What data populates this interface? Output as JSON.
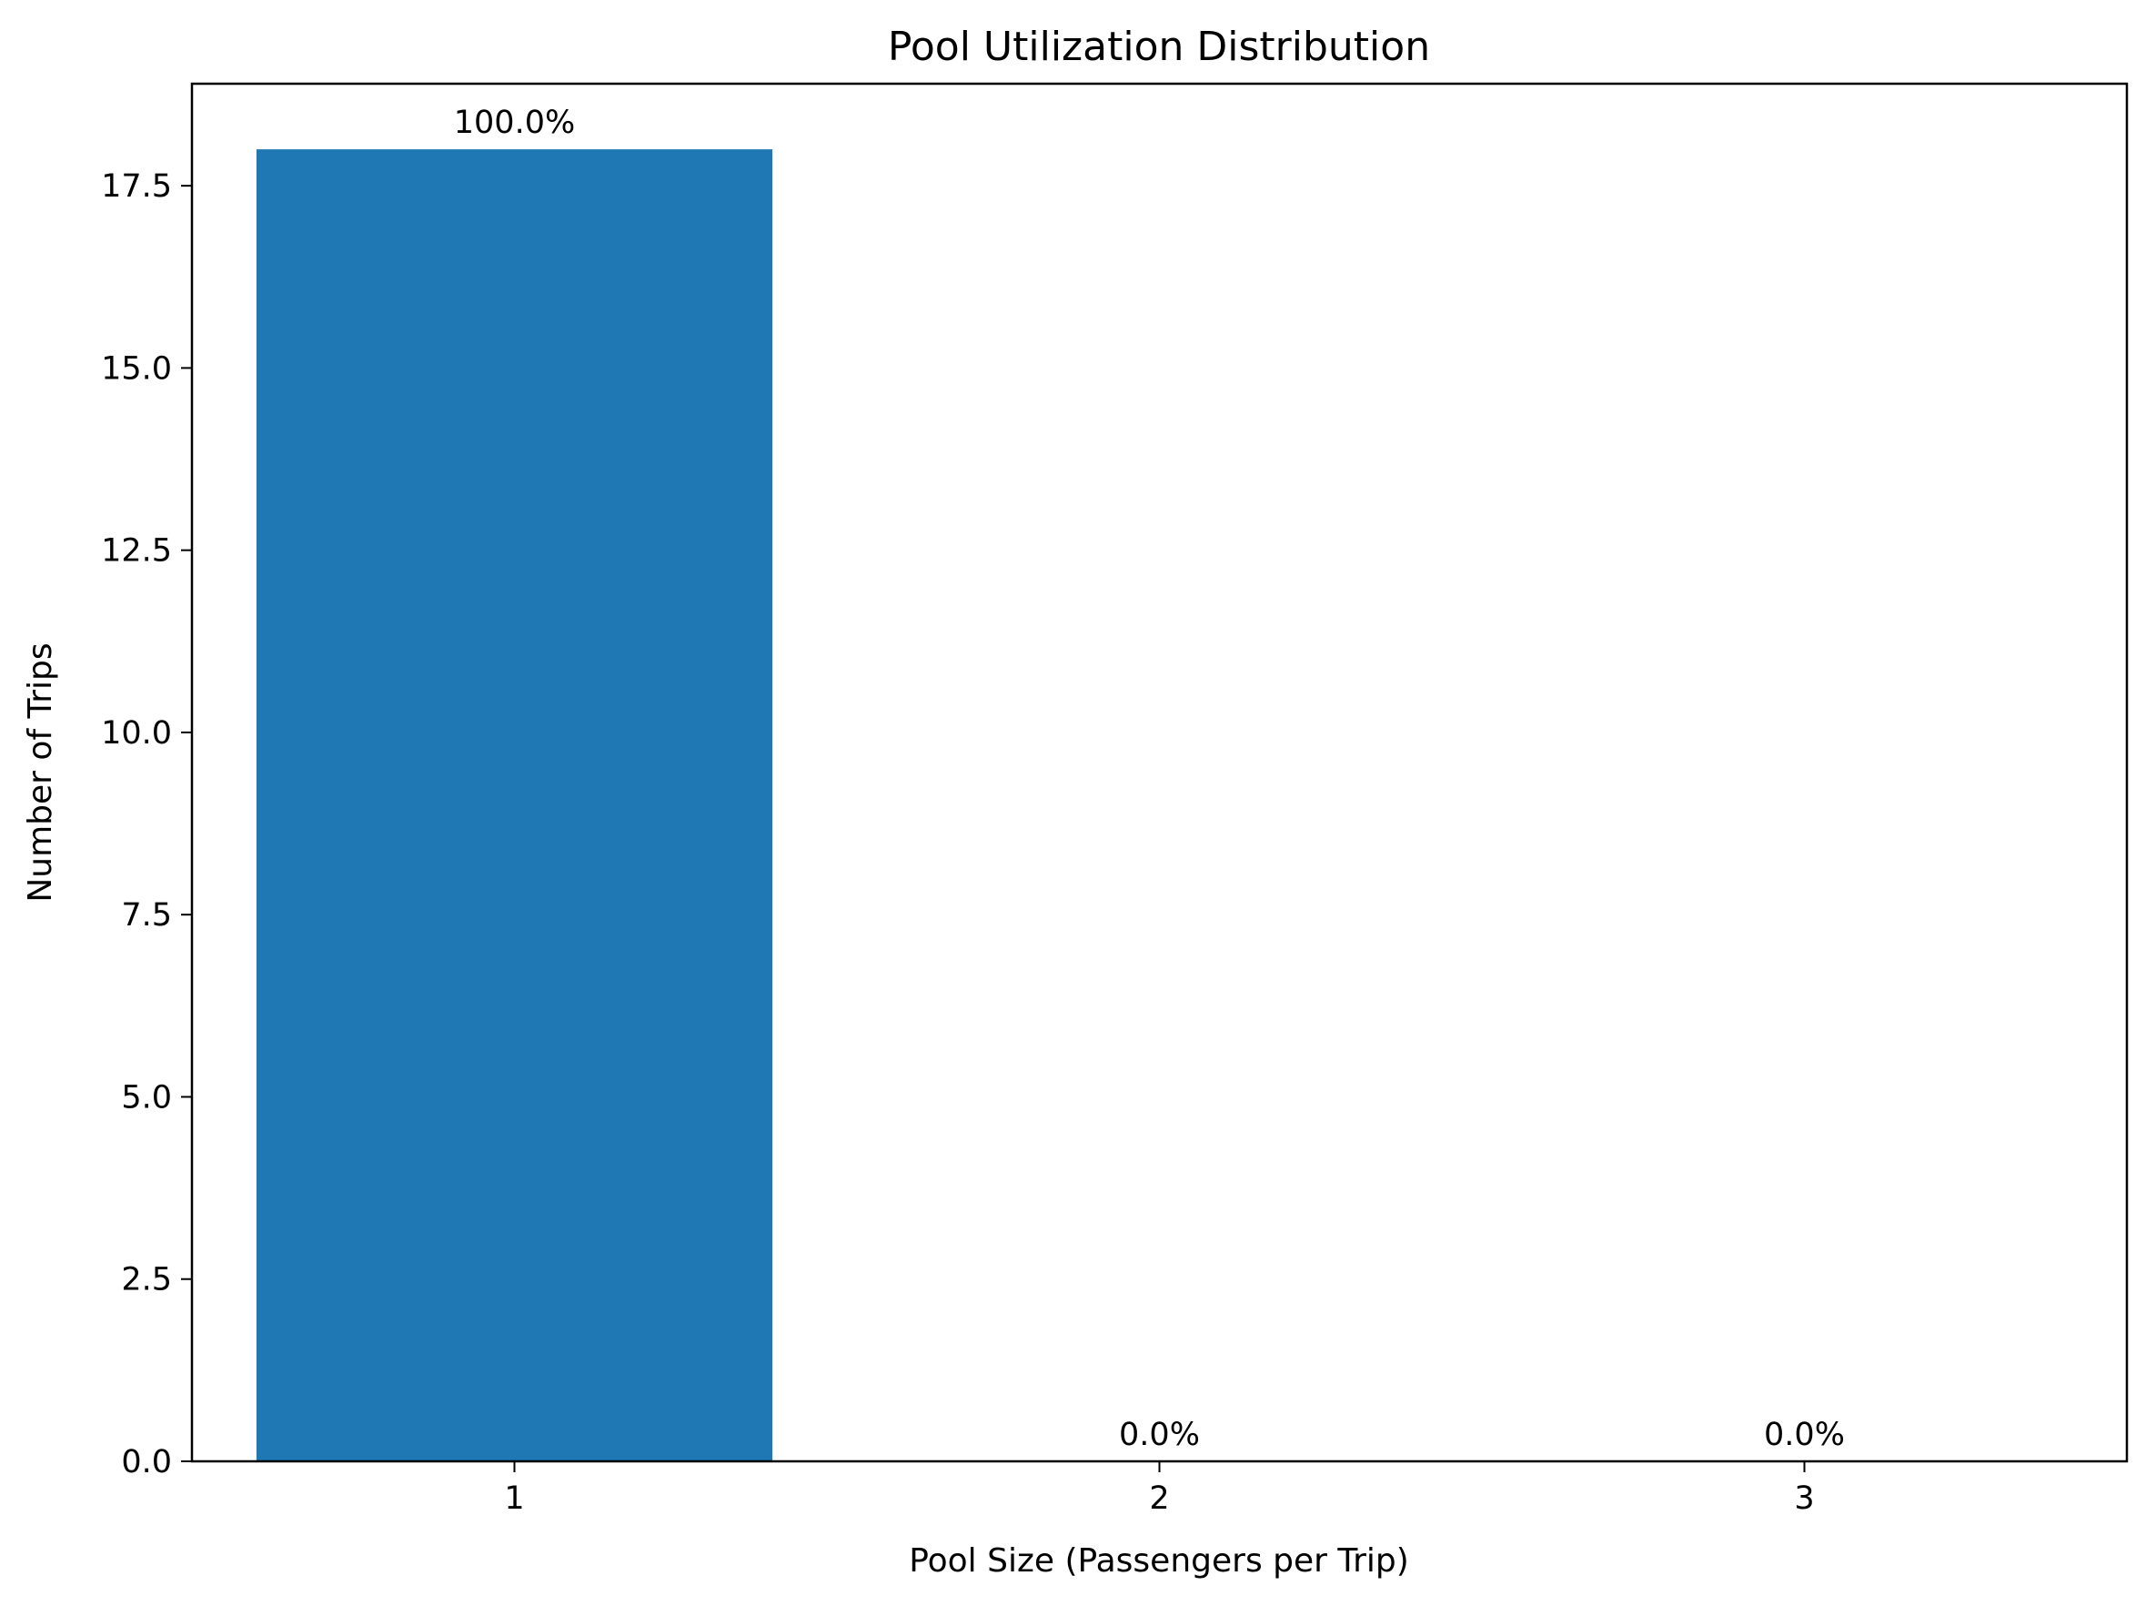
{
  "chart_data": {
    "type": "bar",
    "title": "Pool Utilization Distribution",
    "xlabel": "Pool Size (Passengers per Trip)",
    "ylabel": "Number of Trips",
    "categories": [
      "1",
      "2",
      "3"
    ],
    "values": [
      18,
      0,
      0
    ],
    "data_labels": [
      "100.0%",
      "0.0%",
      "0.0%"
    ],
    "ylim": [
      0,
      18.9
    ],
    "yticks": [
      0.0,
      2.5,
      5.0,
      7.5,
      10.0,
      12.5,
      15.0,
      17.5
    ],
    "ytick_labels": [
      "0.0",
      "2.5",
      "5.0",
      "7.5",
      "10.0",
      "12.5",
      "15.0",
      "17.5"
    ],
    "bar_color": "#1f77b4",
    "grid": false,
    "legend": "none"
  }
}
